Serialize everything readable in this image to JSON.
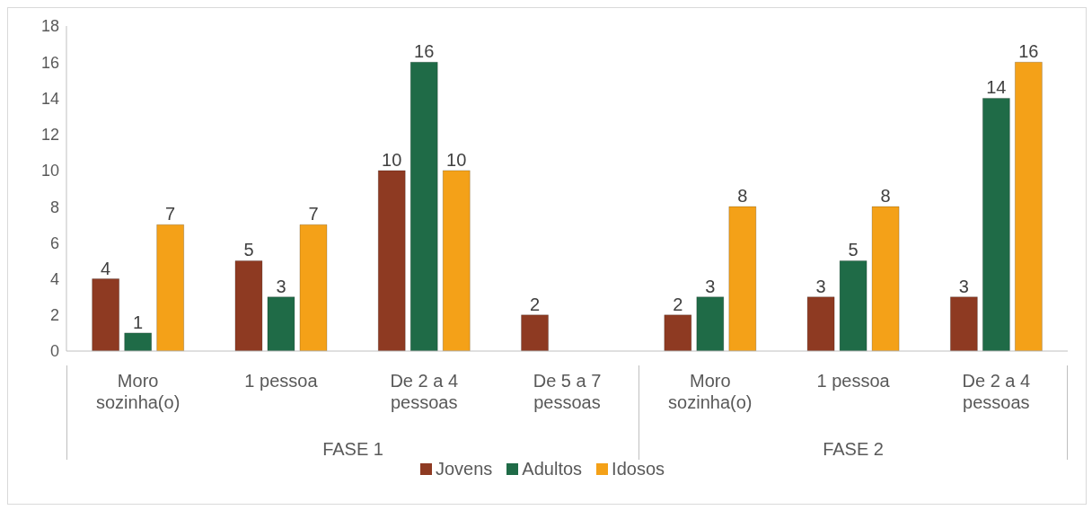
{
  "chart_data": {
    "type": "bar",
    "categories": [
      "Moro sozinha(o)",
      "1 pessoa",
      "De 2 a 4 pessoas",
      "De 5 a 7 pessoas",
      "Moro sozinha(o)",
      "1 pessoa",
      "De 2 a 4 pessoas"
    ],
    "series": [
      {
        "name": "Jovens",
        "color": "#8e3a22",
        "values": [
          4,
          5,
          10,
          2,
          2,
          3,
          3
        ]
      },
      {
        "name": "Adultos",
        "color": "#1f6b47",
        "values": [
          1,
          3,
          16,
          null,
          3,
          5,
          14
        ]
      },
      {
        "name": "Idosos",
        "color": "#f4a118",
        "values": [
          7,
          7,
          10,
          null,
          8,
          8,
          16
        ]
      }
    ],
    "annotations": [
      "FASE 1",
      "FASE 2"
    ],
    "ylim": [
      0,
      18
    ],
    "yticks": [
      0,
      2,
      4,
      6,
      8,
      10,
      12,
      14,
      16,
      18
    ],
    "grid": false,
    "legend": "bottom",
    "data_labels": true
  }
}
